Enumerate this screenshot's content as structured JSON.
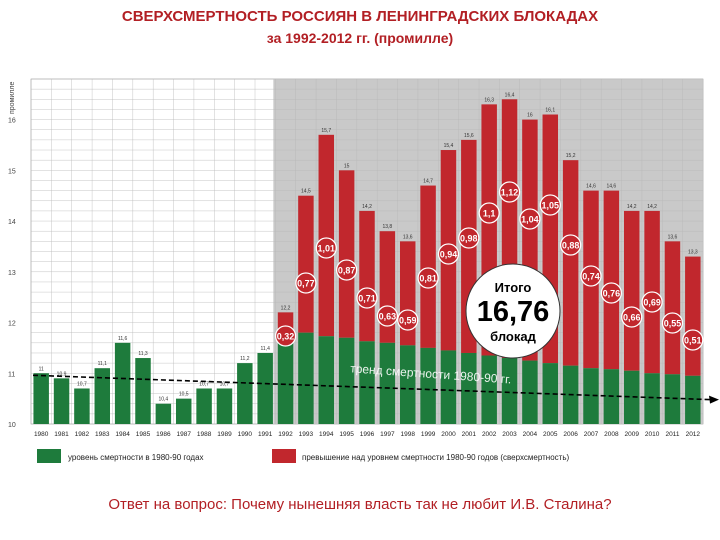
{
  "title": "СВЕРХСМЕРТНОСТЬ РОССИЯН В ЛЕНИНГРАДСКИХ БЛОКАДАХ",
  "subtitle": "за 1992-2012 гг. (промилле)",
  "question": "Ответ на вопрос: Почему нынешняя власть так не любит И.В. Сталина?",
  "colors": {
    "green": "#1e7b3c",
    "red": "#c1272d",
    "shade": "#c9c9c9",
    "title": "#b21f24"
  },
  "chart_data": {
    "type": "bar",
    "ylabel": "промилле",
    "ylim": [
      10,
      16.8
    ],
    "yticks": [
      10,
      11,
      12,
      13,
      14,
      15,
      16
    ],
    "grid": true,
    "years": [
      "1980",
      "1981",
      "1982",
      "1983",
      "1984",
      "1985",
      "1986",
      "1987",
      "1988",
      "1989",
      "1990",
      "1991",
      "1992",
      "1993",
      "1994",
      "1995",
      "1996",
      "1997",
      "1998",
      "1999",
      "2000",
      "2001",
      "2002",
      "2003",
      "2004",
      "2005",
      "2006",
      "2007",
      "2008",
      "2009",
      "2010",
      "2011",
      "2012"
    ],
    "totals": [
      11.0,
      10.9,
      10.7,
      11.1,
      11.6,
      11.3,
      10.4,
      10.5,
      10.7,
      10.7,
      11.2,
      11.4,
      12.2,
      14.5,
      15.7,
      15.0,
      14.2,
      13.8,
      13.6,
      14.7,
      15.4,
      15.6,
      16.3,
      16.4,
      16.0,
      16.1,
      15.2,
      14.6,
      14.6,
      14.2,
      14.2,
      13.6,
      13.3
    ],
    "total_labels": [
      "11",
      "10,9",
      "10,7",
      "11,1",
      "11,6",
      "11,3",
      "10,4",
      "10,5",
      "10,7",
      "10,7",
      "11,2",
      "11,4",
      "12,2",
      "14,5",
      "15,7",
      "15",
      "14,2",
      "13,8",
      "13,6",
      "14,7",
      "15,4",
      "15,6",
      "16,3",
      "16,4",
      "16",
      "16,1",
      "15,2",
      "14,6",
      "14,6",
      "14,2",
      "14,2",
      "13,6",
      "13,3"
    ],
    "trend_1992_2012": [
      11.88,
      11.8,
      11.73,
      11.7,
      11.63,
      11.6,
      11.55,
      11.5,
      11.45,
      11.4,
      11.35,
      11.3,
      11.25,
      11.2,
      11.15,
      11.1,
      11.08,
      11.05,
      11.0,
      10.98,
      10.95
    ],
    "excess": [
      "0,32",
      "0,77",
      "1,01",
      "0,87",
      "0,71",
      "0,63",
      "0,59",
      "0,81",
      "0,94",
      "0,98",
      "1,1",
      "1,12",
      "1,04",
      "1,05",
      "0,88",
      "0,74",
      "0,76",
      "0,66",
      "0,69",
      "0,55",
      "0,51"
    ],
    "trend_label": "тренд смертности 1980-90 гг.",
    "total_box": {
      "line1": "Итого",
      "value": "16,76",
      "line2": "блокад"
    },
    "legend": [
      {
        "label": "уровень смертности в 1980-90 годах",
        "color": "#1e7b3c"
      },
      {
        "label": "превышение над уровнем смертности 1980-90 годов (сверхсмертность)",
        "color": "#c1272d"
      }
    ]
  }
}
